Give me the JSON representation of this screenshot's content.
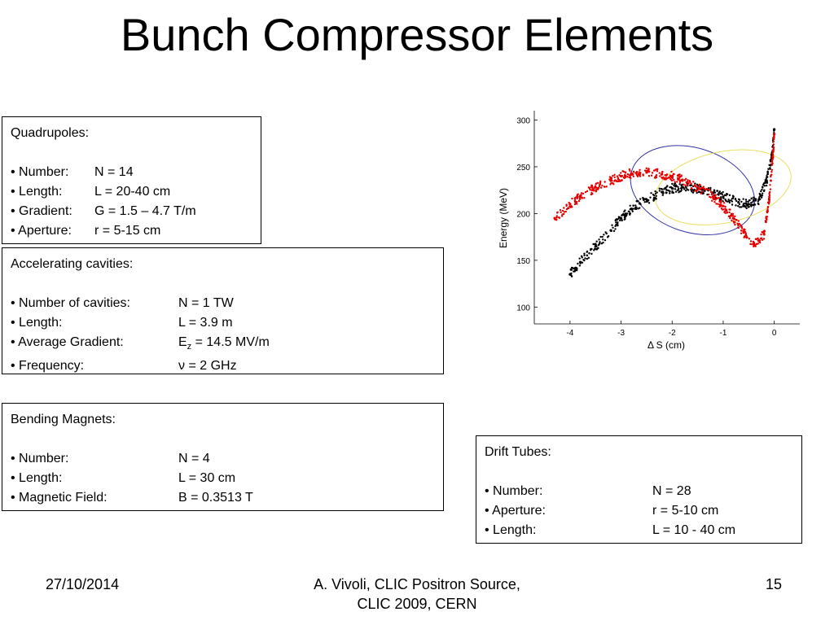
{
  "title": "Bunch Compressor Elements",
  "quadrupoles": {
    "heading": "Quadrupoles:",
    "items": [
      {
        "label": "• Number:",
        "value": "N = 14"
      },
      {
        "label": "• Length:",
        "value": "L = 20-40 cm"
      },
      {
        "label": "• Gradient:",
        "value": "G = 1.5 – 4.7 T/m"
      },
      {
        "label": "• Aperture:",
        "value": "r = 5-15 cm"
      }
    ]
  },
  "accelerating_cavities": {
    "heading": "Accelerating cavities:",
    "items": [
      {
        "label": "• Number of cavities:",
        "value": "N = 1 TW"
      },
      {
        "label": "• Length:",
        "value": "L = 3.9 m"
      },
      {
        "label": "• Average Gradient:",
        "value_prefix": "E",
        "value_sub": "z",
        "value_suffix": " = 14.5 MV/m"
      },
      {
        "label": "• Frequency:",
        "value": "ν = 2 GHz"
      }
    ]
  },
  "bending_magnets": {
    "heading": "Bending Magnets:",
    "items": [
      {
        "label": "• Number:",
        "value": "N = 4"
      },
      {
        "label": "• Length:",
        "value": "L = 30 cm"
      },
      {
        "label": "• Magnetic Field:",
        "value": "B = 0.3513 T"
      }
    ]
  },
  "drift_tubes": {
    "heading": "Drift Tubes:",
    "items": [
      {
        "label": "• Number:",
        "value": "N = 28"
      },
      {
        "label": "• Aperture:",
        "value": "r = 5-10 cm"
      },
      {
        "label": "• Length:",
        "value": "L = 10 - 40 cm"
      }
    ]
  },
  "chart_data": {
    "type": "scatter",
    "xlabel": "Δ S (cm)",
    "ylabel": "Energy (MeV)",
    "xlim": [
      -4.7,
      0.5
    ],
    "ylim": [
      82,
      310
    ],
    "x_ticks": [
      -4,
      -3,
      -2,
      -1,
      0
    ],
    "x_tick_labels": [
      "-4",
      "-3",
      "-2",
      "-1",
      "0"
    ],
    "y_ticks": [
      100,
      150,
      200,
      250,
      300
    ],
    "y_tick_labels": [
      "100",
      "150",
      "200",
      "250",
      "300"
    ],
    "colors": {
      "black_series": "#000000",
      "red_series": "#e60000",
      "blue_ellipse": "#3333aa",
      "yellow_ellipse": "#e8e060"
    },
    "series": [
      {
        "color": "#000000",
        "x": [
          -4.0,
          -3.8,
          -3.5,
          -3.2,
          -3.0,
          -2.8,
          -2.5,
          -2.2,
          -2.0,
          -1.8,
          -1.5,
          -1.2,
          -1.0,
          -0.7,
          -0.5,
          -0.3,
          -0.15,
          -0.05,
          0.0
        ],
        "y": [
          135,
          148,
          165,
          182,
          195,
          205,
          215,
          223,
          227,
          228,
          227,
          222,
          218,
          212,
          210,
          215,
          235,
          260,
          290
        ]
      },
      {
        "color": "#e60000",
        "x": [
          -4.3,
          -4.0,
          -3.8,
          -3.5,
          -3.2,
          -3.0,
          -2.8,
          -2.5,
          -2.2,
          -2.0,
          -1.8,
          -1.5,
          -1.2,
          -1.0,
          -0.8,
          -0.6,
          -0.4,
          -0.2,
          -0.1,
          -0.03,
          0.0
        ],
        "y": [
          195,
          210,
          218,
          228,
          235,
          240,
          243,
          244,
          242,
          240,
          236,
          228,
          218,
          208,
          195,
          180,
          168,
          178,
          215,
          260,
          285
        ]
      }
    ],
    "ellipses": [
      {
        "color": "#3333aa",
        "cx": -1.6,
        "cy": 225,
        "rx": 1.25,
        "ry": 45,
        "angle_deg": 18
      },
      {
        "color": "#e8e060",
        "cx": -1.0,
        "cy": 228,
        "rx": 1.35,
        "ry": 38,
        "angle_deg": -12
      }
    ]
  },
  "footer": {
    "date": "27/10/2014",
    "center_line1": "A. Vivoli,  CLIC Positron Source,",
    "center_line2": "CLIC 2009, CERN",
    "page": "15"
  }
}
